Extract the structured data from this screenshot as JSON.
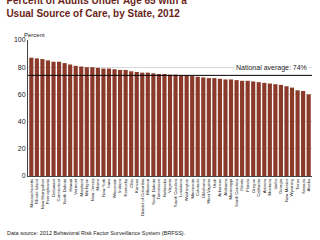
{
  "chart_data": {
    "type": "bar",
    "title": [
      "Percent of Adults Under Age 65 with a",
      "Usual Source of Care, by State, 2012"
    ],
    "ylabel": "Percent",
    "source": "Data source: 2012 Behavioral Risk Factor Surveillance System (BRFSS).",
    "annotation": "National average: 74%",
    "average": 74,
    "categories": [
      "Massachusetts",
      "Rhode Island",
      "New Hampshire",
      "Pennsylvania",
      "Delaware",
      "Connecticut",
      "North Dakota",
      "Hawaii",
      "Vermont",
      "Maryland",
      "Michigan",
      "New Jersey",
      "Maine",
      "New York",
      "Iowa",
      "Wisconsin",
      "Indiana",
      "Kentucky",
      "Ohio",
      "Kansas",
      "District of Columbia",
      "Missouri",
      "South Dakota",
      "Tennessee",
      "Nebraska",
      "Virginia",
      "South Carolina",
      "Louisiana",
      "Washington",
      "Minnesota",
      "Colorado",
      "Oklahoma",
      "West Virginia",
      "Utah",
      "Arkansas",
      "Alabama",
      "Mississippi",
      "North Carolina",
      "Illinois",
      "Florida",
      "Oregon",
      "California",
      "Arizona",
      "Montana",
      "Idaho",
      "Georgia",
      "New Mexico",
      "Wyoming",
      "Texas",
      "Nevada",
      "Alaska"
    ],
    "values": [
      87,
      86.5,
      86,
      85,
      84,
      84,
      83,
      82,
      81,
      80.5,
      80,
      80,
      79.5,
      79,
      79,
      78.5,
      78,
      78,
      77,
      76.5,
      76,
      76,
      75.5,
      75,
      75,
      74.5,
      74.5,
      74,
      74,
      73.5,
      73,
      72.5,
      72,
      72,
      71.5,
      71,
      71,
      70.5,
      70,
      70,
      69.5,
      69,
      68.5,
      68,
      67.5,
      67,
      66,
      65,
      63,
      62.5,
      60
    ],
    "color": "#8b3a2a",
    "ylim": [
      0,
      100
    ],
    "yticks": [
      0,
      20,
      40,
      60,
      80,
      100
    ],
    "grid": true
  }
}
